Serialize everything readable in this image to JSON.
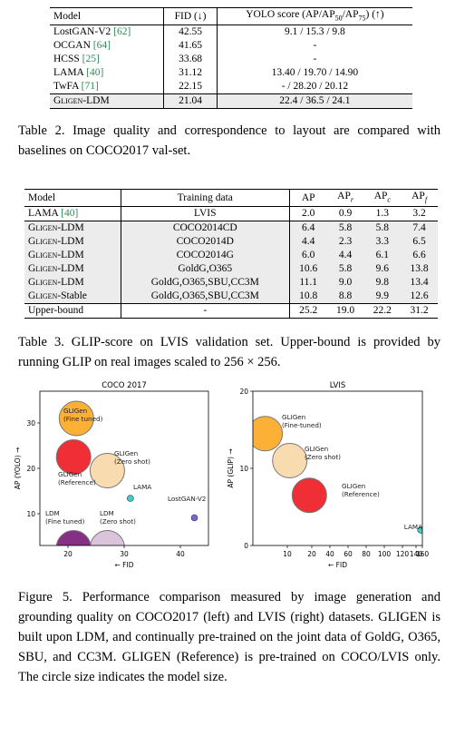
{
  "table2": {
    "headers": [
      "Model",
      "FID (↓)",
      "YOLO score (AP/AP50/AP75) (↑)"
    ],
    "rows": [
      {
        "model": "LostGAN-V2",
        "cite": "[62]",
        "fid": "42.55",
        "yolo": "9.1 / 15.3 / 9.8"
      },
      {
        "model": "OCGAN",
        "cite": "[64]",
        "fid": "41.65",
        "yolo": "-"
      },
      {
        "model": "HCSS",
        "cite": "[25]",
        "fid": "33.68",
        "yolo": "-"
      },
      {
        "model": "LAMA",
        "cite": "[40]",
        "fid": "31.12",
        "yolo": "13.40 / 19.70 / 14.90"
      },
      {
        "model": "TwFA",
        "cite": "[71]",
        "fid": "22.15",
        "yolo": "- / 28.20 / 20.12"
      },
      {
        "model": "GLIGEN-LDM",
        "cite": "",
        "fid": "21.04",
        "yolo": "22.4 / 36.5 / 24.1"
      }
    ],
    "caption": "Table 2. Image quality and correspondence to layout are compared with baselines on COCO2017 val-set."
  },
  "table3": {
    "headers": [
      "Model",
      "Training data",
      "AP",
      "APr",
      "APc",
      "APf"
    ],
    "rows": [
      {
        "model": "LAMA",
        "cite": "[40]",
        "data": "LVIS",
        "ap": "2.0",
        "apr": "0.9",
        "apc": "1.3",
        "apf": "3.2"
      },
      {
        "model": "GLIGEN-LDM",
        "cite": "",
        "data": "COCO2014CD",
        "ap": "6.4",
        "apr": "5.8",
        "apc": "5.8",
        "apf": "7.4"
      },
      {
        "model": "GLIGEN-LDM",
        "cite": "",
        "data": "COCO2014D",
        "ap": "4.4",
        "apr": "2.3",
        "apc": "3.3",
        "apf": "6.5"
      },
      {
        "model": "GLIGEN-LDM",
        "cite": "",
        "data": "COCO2014G",
        "ap": "6.0",
        "apr": "4.4",
        "apc": "6.1",
        "apf": "6.6"
      },
      {
        "model": "GLIGEN-LDM",
        "cite": "",
        "data": "GoldG,O365",
        "ap": "10.6",
        "apr": "5.8",
        "apc": "9.6",
        "apf": "13.8"
      },
      {
        "model": "GLIGEN-LDM",
        "cite": "",
        "data": "GoldG,O365,SBU,CC3M",
        "ap": "11.1",
        "apr": "9.0",
        "apc": "9.8",
        "apf": "13.4"
      },
      {
        "model": "GLIGEN-Stable",
        "cite": "",
        "data": "GoldG,O365,SBU,CC3M",
        "ap": "10.8",
        "apr": "8.8",
        "apc": "9.9",
        "apf": "12.6"
      },
      {
        "model": "Upper-bound",
        "cite": "",
        "data": "-",
        "ap": "25.2",
        "apr": "19.0",
        "apc": "22.2",
        "apf": "31.2"
      }
    ],
    "caption": "Table 3.  GLIP-score on LVIS validation set.  Upper-bound is provided by running GLIP on real images scaled to 256 × 256."
  },
  "chart_data": [
    {
      "type": "scatter",
      "title": "COCO 2017",
      "xlabel": "← FID",
      "ylabel": "AP (YOLO) →",
      "xlim": [
        15,
        45
      ],
      "ylim": [
        3,
        37
      ],
      "xticks": [
        20,
        30,
        40
      ],
      "yticks": [
        10,
        20,
        30
      ],
      "series": [
        {
          "name": "GLIGen\n(Fine tuned)",
          "x": 21.5,
          "y": 31,
          "size": "large",
          "color": "#fca925"
        },
        {
          "name": "GLIGen\n(Reference)",
          "x": 21,
          "y": 22.5,
          "size": "large",
          "color": "#ee1c25"
        },
        {
          "name": "GLIGen\n(Zero shot)",
          "x": 27,
          "y": 19.5,
          "size": "large",
          "color": "#f7d9a8"
        },
        {
          "name": "LAMA",
          "x": 31.1,
          "y": 13.4,
          "size": "small",
          "color": "#31c8c8"
        },
        {
          "name": "LostGAN-V2",
          "x": 42.5,
          "y": 9.1,
          "size": "small",
          "color": "#6a5acd"
        },
        {
          "name": "LDM\n(Fine tuned)",
          "x": 21,
          "y": 2.5,
          "size": "large",
          "color": "#7b1e7a"
        },
        {
          "name": "LDM\n(Zero shot)",
          "x": 27,
          "y": 2.5,
          "size": "large",
          "color": "#d8bfd8"
        }
      ]
    },
    {
      "type": "scatter",
      "title": "LVIS",
      "xlabel": "← FID",
      "ylabel": "AP (GLIP) →",
      "xlim": [
        3,
        160
      ],
      "ylim": [
        0,
        20
      ],
      "xticks": [
        10,
        20,
        40,
        60,
        80,
        100,
        120,
        140,
        160
      ],
      "yticks": [
        0,
        10,
        20
      ],
      "series": [
        {
          "name": "GLIGen\n(Fine-tuned)",
          "x": 5.5,
          "y": 14.5,
          "size": "large",
          "color": "#fca925"
        },
        {
          "name": "GLIGen\n(Zero shot)",
          "x": 11,
          "y": 11,
          "size": "large",
          "color": "#f7d9a8"
        },
        {
          "name": "GLIGen\n(Reference)",
          "x": 19,
          "y": 6.5,
          "size": "large",
          "color": "#ee1c25"
        },
        {
          "name": "LAMA",
          "x": 155,
          "y": 2,
          "size": "small",
          "color": "#31c8c8"
        }
      ]
    }
  ],
  "figure_caption": "Figure 5.  Performance comparison measured by image generation and grounding quality on COCO2017 (left) and LVIS (right) datasets. GLIGEN is built upon LDM, and continually pre-trained on the joint data of GoldG, O365, SBU, and CC3M. GLIGEN (Reference) is pre-trained on COCO/LVIS only.  The circle size indicates the model size."
}
